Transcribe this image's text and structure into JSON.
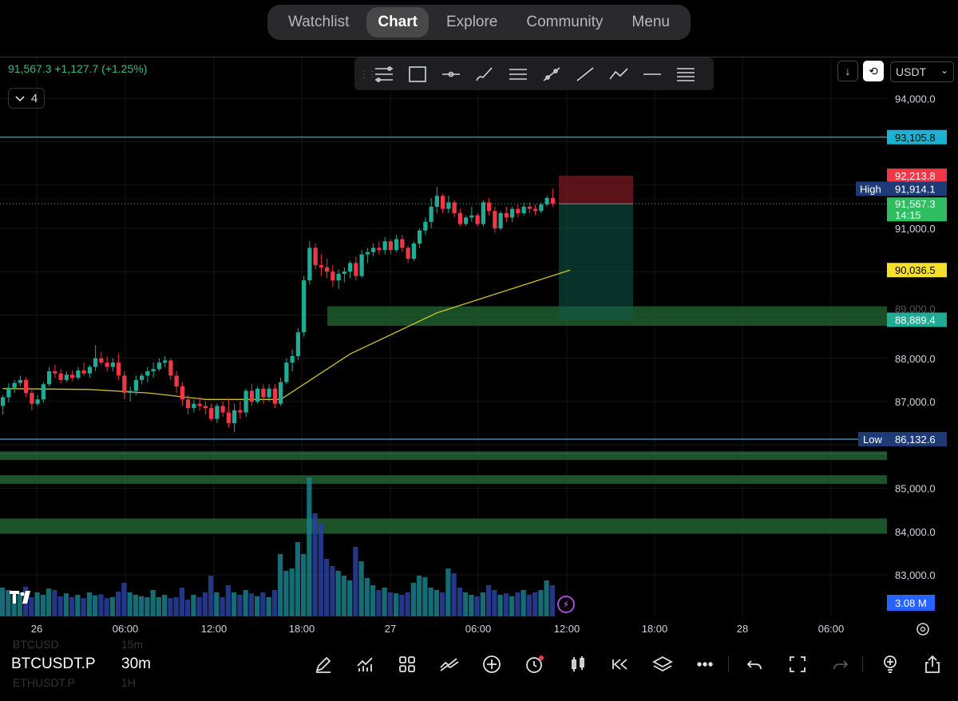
{
  "nav": {
    "tabs": [
      "Watchlist",
      "Chart",
      "Explore",
      "Community",
      "Menu"
    ],
    "active": "Chart"
  },
  "legend": {
    "price": "91,567.3",
    "change": "+1,127.7",
    "change_pct": "(+1.25%)",
    "indicator_count": "4"
  },
  "toolbar_tools": [
    "fib-retracement-icon",
    "rectangle-icon",
    "horizontal-ray-icon",
    "brush-icon",
    "parallel-channel-icon",
    "trend-angle-icon",
    "trend-line-icon",
    "path-icon",
    "horizontal-line-icon",
    "fib-channel-icon"
  ],
  "currency": "USDT",
  "price_scale": {
    "ticks": [
      "94,000.0",
      "91,000.0",
      "88,000.0",
      "87,000.0",
      "85,000.0",
      "84,000.0",
      "83,000.0"
    ],
    "labels": {
      "level_top": "93,105.8",
      "stop": "92,213.8",
      "high_tag": "High",
      "high": "91,914.1",
      "last": "91,567.3",
      "countdown": "14:15",
      "ma": "90,036.5",
      "target": "88,889.4",
      "low_tag": "Low",
      "low": "86,132.6",
      "volume": "3.08 M"
    },
    "colors": {
      "cyan": "#1bb3d3",
      "red": "#f23645",
      "green": "#22ab94",
      "yellow": "#f5e12b",
      "blue": "#2962ff",
      "navy": "#1e3a78"
    }
  },
  "time_axis": [
    "26",
    "06:00",
    "12:00",
    "18:00",
    "27",
    "06:00",
    "12:00",
    "18:00",
    "28",
    "06:00"
  ],
  "watchlist_ghost": [
    {
      "symbol": "BTCUSD",
      "interval": "15m"
    },
    {
      "symbol": "ETHUSDT.P",
      "interval": "1H"
    }
  ],
  "bottom": {
    "symbol": "BTCUSDT.P",
    "interval": "30m",
    "icons": [
      "draw-icon",
      "indicators-icon",
      "layouts-icon",
      "compare-icon",
      "add-icon",
      "alert-icon",
      "chart-type-icon",
      "replay-icon",
      "layers-icon",
      "more-icon",
      "undo-icon",
      "fullscreen-icon",
      "redo-icon",
      "ideas-icon",
      "share-icon"
    ]
  },
  "chart_data": {
    "type": "candlestick",
    "symbol": "BTCUSDT.P",
    "interval": "30m",
    "ylim": [
      82500,
      94600
    ],
    "candles": [
      [
        86900,
        87150,
        86700,
        87100
      ],
      [
        87100,
        87420,
        86980,
        87320
      ],
      [
        87320,
        87500,
        87200,
        87430
      ],
      [
        87430,
        87600,
        87350,
        87500
      ],
      [
        87500,
        87560,
        87100,
        87200
      ],
      [
        87200,
        87300,
        86800,
        86950
      ],
      [
        86950,
        87150,
        86900,
        87050
      ],
      [
        87050,
        87450,
        86980,
        87400
      ],
      [
        87400,
        87800,
        87350,
        87700
      ],
      [
        87700,
        87850,
        87550,
        87650
      ],
      [
        87650,
        87750,
        87420,
        87500
      ],
      [
        87500,
        87700,
        87450,
        87620
      ],
      [
        87620,
        87720,
        87480,
        87550
      ],
      [
        87550,
        87800,
        87500,
        87720
      ],
      [
        87720,
        87900,
        87600,
        87650
      ],
      [
        87650,
        87850,
        87550,
        87800
      ],
      [
        87800,
        88300,
        87700,
        88000
      ],
      [
        88000,
        88150,
        87850,
        87900
      ],
      [
        87900,
        88050,
        87700,
        87800
      ],
      [
        87800,
        88000,
        87700,
        87900
      ],
      [
        87900,
        88100,
        87500,
        87600
      ],
      [
        87600,
        87700,
        87050,
        87200
      ],
      [
        87200,
        87350,
        87000,
        87250
      ],
      [
        87250,
        87600,
        87150,
        87500
      ],
      [
        87500,
        87650,
        87400,
        87600
      ],
      [
        87600,
        87800,
        87450,
        87700
      ],
      [
        87700,
        87900,
        87550,
        87750
      ],
      [
        87750,
        88000,
        87700,
        87900
      ],
      [
        87900,
        88050,
        87800,
        87950
      ],
      [
        87950,
        88000,
        87500,
        87600
      ],
      [
        87600,
        87700,
        87200,
        87350
      ],
      [
        87350,
        87450,
        86900,
        87050
      ],
      [
        87050,
        87150,
        86700,
        86850
      ],
      [
        86850,
        87050,
        86750,
        86950
      ],
      [
        86950,
        87100,
        86800,
        86900
      ],
      [
        86900,
        87000,
        86700,
        86850
      ],
      [
        86850,
        86950,
        86550,
        86600
      ],
      [
        86600,
        86950,
        86500,
        86900
      ],
      [
        86900,
        87000,
        86650,
        86750
      ],
      [
        86750,
        87050,
        86400,
        86500
      ],
      [
        86500,
        86950,
        86300,
        86800
      ],
      [
        86800,
        87000,
        86600,
        86750
      ],
      [
        86750,
        87300,
        86650,
        87250
      ],
      [
        87250,
        87400,
        86900,
        87000
      ],
      [
        87000,
        87350,
        86950,
        87300
      ],
      [
        87300,
        87400,
        86950,
        87100
      ],
      [
        87100,
        87400,
        87000,
        87300
      ],
      [
        87300,
        87400,
        86850,
        86950
      ],
      [
        86950,
        87550,
        86900,
        87450
      ],
      [
        87450,
        88000,
        87400,
        87900
      ],
      [
        87900,
        88200,
        87700,
        88050
      ],
      [
        88050,
        88700,
        87950,
        88600
      ],
      [
        88600,
        89900,
        88500,
        89800
      ],
      [
        89800,
        90700,
        89700,
        90550
      ],
      [
        90550,
        90650,
        90050,
        90150
      ],
      [
        90150,
        90400,
        89900,
        90100
      ],
      [
        90100,
        90300,
        89850,
        90000
      ],
      [
        90000,
        90150,
        89650,
        89800
      ],
      [
        89800,
        90050,
        89600,
        89950
      ],
      [
        89950,
        90100,
        89750,
        90000
      ],
      [
        90000,
        90250,
        89850,
        90200
      ],
      [
        90200,
        90350,
        89800,
        89900
      ],
      [
        89900,
        90500,
        89850,
        90400
      ],
      [
        90400,
        90550,
        90200,
        90450
      ],
      [
        90450,
        90650,
        90350,
        90550
      ],
      [
        90550,
        90700,
        90400,
        90500
      ],
      [
        90500,
        90800,
        90400,
        90700
      ],
      [
        90700,
        90750,
        90400,
        90500
      ],
      [
        90500,
        90850,
        90450,
        90750
      ],
      [
        90750,
        90850,
        90450,
        90550
      ],
      [
        90550,
        90600,
        90200,
        90300
      ],
      [
        90300,
        90700,
        90250,
        90650
      ],
      [
        90650,
        91000,
        90550,
        90950
      ],
      [
        90950,
        91250,
        90850,
        91150
      ],
      [
        91150,
        91700,
        91000,
        91500
      ],
      [
        91500,
        91950,
        91350,
        91750
      ],
      [
        91750,
        91800,
        91350,
        91450
      ],
      [
        91450,
        91750,
        91350,
        91600
      ],
      [
        91600,
        91650,
        91250,
        91350
      ],
      [
        91350,
        91450,
        91050,
        91100
      ],
      [
        91100,
        91300,
        91050,
        91250
      ],
      [
        91250,
        91500,
        91150,
        91300
      ],
      [
        91300,
        91350,
        91050,
        91100
      ],
      [
        91100,
        91650,
        91050,
        91600
      ],
      [
        91600,
        91700,
        91300,
        91400
      ],
      [
        91400,
        91500,
        90900,
        91000
      ],
      [
        91000,
        91400,
        90950,
        91350
      ],
      [
        91350,
        91500,
        91150,
        91250
      ],
      [
        91250,
        91500,
        91150,
        91450
      ],
      [
        91450,
        91550,
        91250,
        91350
      ],
      [
        91350,
        91600,
        91300,
        91500
      ],
      [
        91500,
        91600,
        91350,
        91450
      ],
      [
        91450,
        91550,
        91300,
        91400
      ],
      [
        91400,
        91600,
        91350,
        91550
      ],
      [
        91550,
        91750,
        91500,
        91700
      ],
      [
        91700,
        91914,
        91500,
        91567
      ]
    ],
    "volume_rel": [
      0.6,
      0.55,
      0.45,
      0.5,
      0.62,
      0.4,
      0.5,
      0.45,
      0.58,
      0.55,
      0.42,
      0.48,
      0.4,
      0.45,
      0.38,
      0.5,
      0.44,
      0.46,
      0.38,
      0.4,
      0.52,
      0.7,
      0.5,
      0.45,
      0.42,
      0.4,
      0.55,
      0.4,
      0.45,
      0.38,
      0.4,
      0.6,
      0.35,
      0.45,
      0.4,
      0.5,
      0.85,
      0.5,
      0.4,
      0.65,
      0.5,
      0.45,
      0.55,
      0.48,
      0.42,
      0.5,
      0.4,
      0.55,
      1.3,
      0.95,
      1.0,
      1.55,
      1.3,
      2.9,
      2.15,
      1.95,
      1.2,
      1.05,
      0.95,
      0.85,
      0.75,
      1.45,
      1.15,
      0.8,
      0.65,
      0.55,
      0.6,
      0.5,
      0.48,
      0.45,
      0.5,
      0.7,
      0.85,
      0.82,
      0.6,
      0.55,
      0.5,
      1.0,
      0.9,
      0.6,
      0.5,
      0.45,
      0.42,
      0.5,
      0.65,
      0.55,
      0.45,
      0.48,
      0.42,
      0.5,
      0.55,
      0.45,
      0.5,
      0.55,
      0.75,
      0.65
    ],
    "moving_average": [
      [
        0,
        87300
      ],
      [
        15,
        87280
      ],
      [
        25,
        87200
      ],
      [
        35,
        87050
      ],
      [
        48,
        87050
      ],
      [
        60,
        88100
      ],
      [
        75,
        89050
      ],
      [
        98,
        90037
      ]
    ],
    "position": {
      "entry": 91567.3,
      "stop": 92213.8,
      "target": 88889.4
    },
    "levels": {
      "high": 91914.1,
      "low": 86132.6,
      "top": 93105.8
    }
  }
}
